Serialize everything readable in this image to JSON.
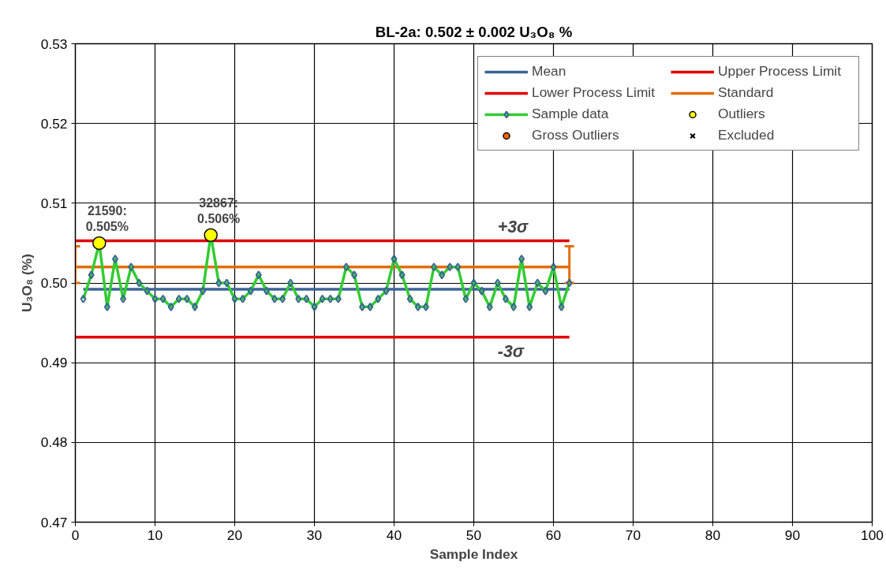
{
  "chart_data": {
    "type": "line",
    "title": "BL-2a: 0.502 ± 0.002 U₃O₈ %",
    "xlabel": "Sample Index",
    "ylabel": "U₃O₈ (%)",
    "xlim": [
      0,
      100
    ],
    "xticks": [
      0,
      10,
      20,
      30,
      40,
      50,
      60,
      70,
      80,
      90,
      100
    ],
    "ylim": [
      0.47,
      0.53
    ],
    "yticks": [
      {
        "value": 0.47,
        "label": "0.47"
      },
      {
        "value": 0.48,
        "label": "0.48"
      },
      {
        "value": 0.49,
        "label": "0.49"
      },
      {
        "value": 0.5,
        "label": "0.50"
      },
      {
        "value": 0.51,
        "label": "0.51"
      },
      {
        "value": 0.52,
        "label": "0.52"
      },
      {
        "value": 0.53,
        "label": "0.53"
      }
    ],
    "grid": true,
    "legend": "top right",
    "series": [
      {
        "name": "Mean",
        "color": "#3a6496",
        "x": [
          1,
          62
        ],
        "values": [
          0.4992,
          0.4992
        ]
      },
      {
        "name": "Upper Process Limit",
        "color": "#e00000",
        "x": [
          0,
          62
        ],
        "values": [
          0.5053,
          0.5053
        ]
      },
      {
        "name": "Lower Process Limit",
        "color": "#e00000",
        "x": [
          0,
          62
        ],
        "values": [
          0.4932,
          0.4932
        ]
      },
      {
        "name": "Standard",
        "color": "#e46c0a",
        "x": [
          0,
          62
        ],
        "values": [
          0.502,
          0.502
        ],
        "errors": [
          [
            0.5,
            0.5046
          ],
          [
            0.5,
            0.5046
          ]
        ]
      },
      {
        "name": "Sample data",
        "color": "#33cc33",
        "marker": "diamond",
        "x": [
          1,
          2,
          3,
          4,
          5,
          6,
          7,
          8,
          9,
          10,
          11,
          12,
          13,
          14,
          15,
          16,
          17,
          18,
          19,
          20,
          21,
          22,
          23,
          24,
          25,
          26,
          27,
          28,
          29,
          30,
          31,
          32,
          33,
          34,
          35,
          36,
          37,
          38,
          39,
          40,
          41,
          42,
          43,
          44,
          45,
          46,
          47,
          48,
          49,
          50,
          51,
          52,
          53,
          54,
          55,
          56,
          57,
          58,
          59,
          60,
          61,
          62
        ],
        "values": [
          0.498,
          0.501,
          0.505,
          0.497,
          0.503,
          0.498,
          0.502,
          0.5,
          0.499,
          0.498,
          0.498,
          0.497,
          0.498,
          0.498,
          0.497,
          0.499,
          0.506,
          0.5,
          0.5,
          0.498,
          0.498,
          0.499,
          0.501,
          0.499,
          0.498,
          0.498,
          0.5,
          0.498,
          0.498,
          0.497,
          0.498,
          0.498,
          0.498,
          0.502,
          0.501,
          0.497,
          0.497,
          0.498,
          0.499,
          0.503,
          0.501,
          0.498,
          0.497,
          0.497,
          0.502,
          0.501,
          0.502,
          0.502,
          0.498,
          0.5,
          0.499,
          0.497,
          0.5,
          0.498,
          0.497,
          0.503,
          0.497,
          0.5,
          0.499,
          0.502,
          0.497,
          0.5
        ]
      },
      {
        "name": "Outliers",
        "type": "scatter",
        "color": "#ffff00",
        "marker": "circle",
        "x": [
          3,
          17
        ],
        "values": [
          0.505,
          0.506
        ]
      },
      {
        "name": "Gross Outliers",
        "type": "scatter",
        "color": "#ff6600",
        "marker": "circle"
      },
      {
        "name": "Excluded",
        "type": "scatter",
        "color": "#000000",
        "marker": "cross"
      }
    ],
    "annotations": [
      {
        "text": "21590:\n0.505%",
        "x": 3,
        "y": 0.505
      },
      {
        "text": "32867:\n0.506%",
        "x": 17,
        "y": 0.506
      },
      {
        "text": "+3σ",
        "x": 53,
        "y": 0.5053
      },
      {
        "text": "-3σ",
        "x": 53,
        "y": 0.4932
      }
    ]
  }
}
